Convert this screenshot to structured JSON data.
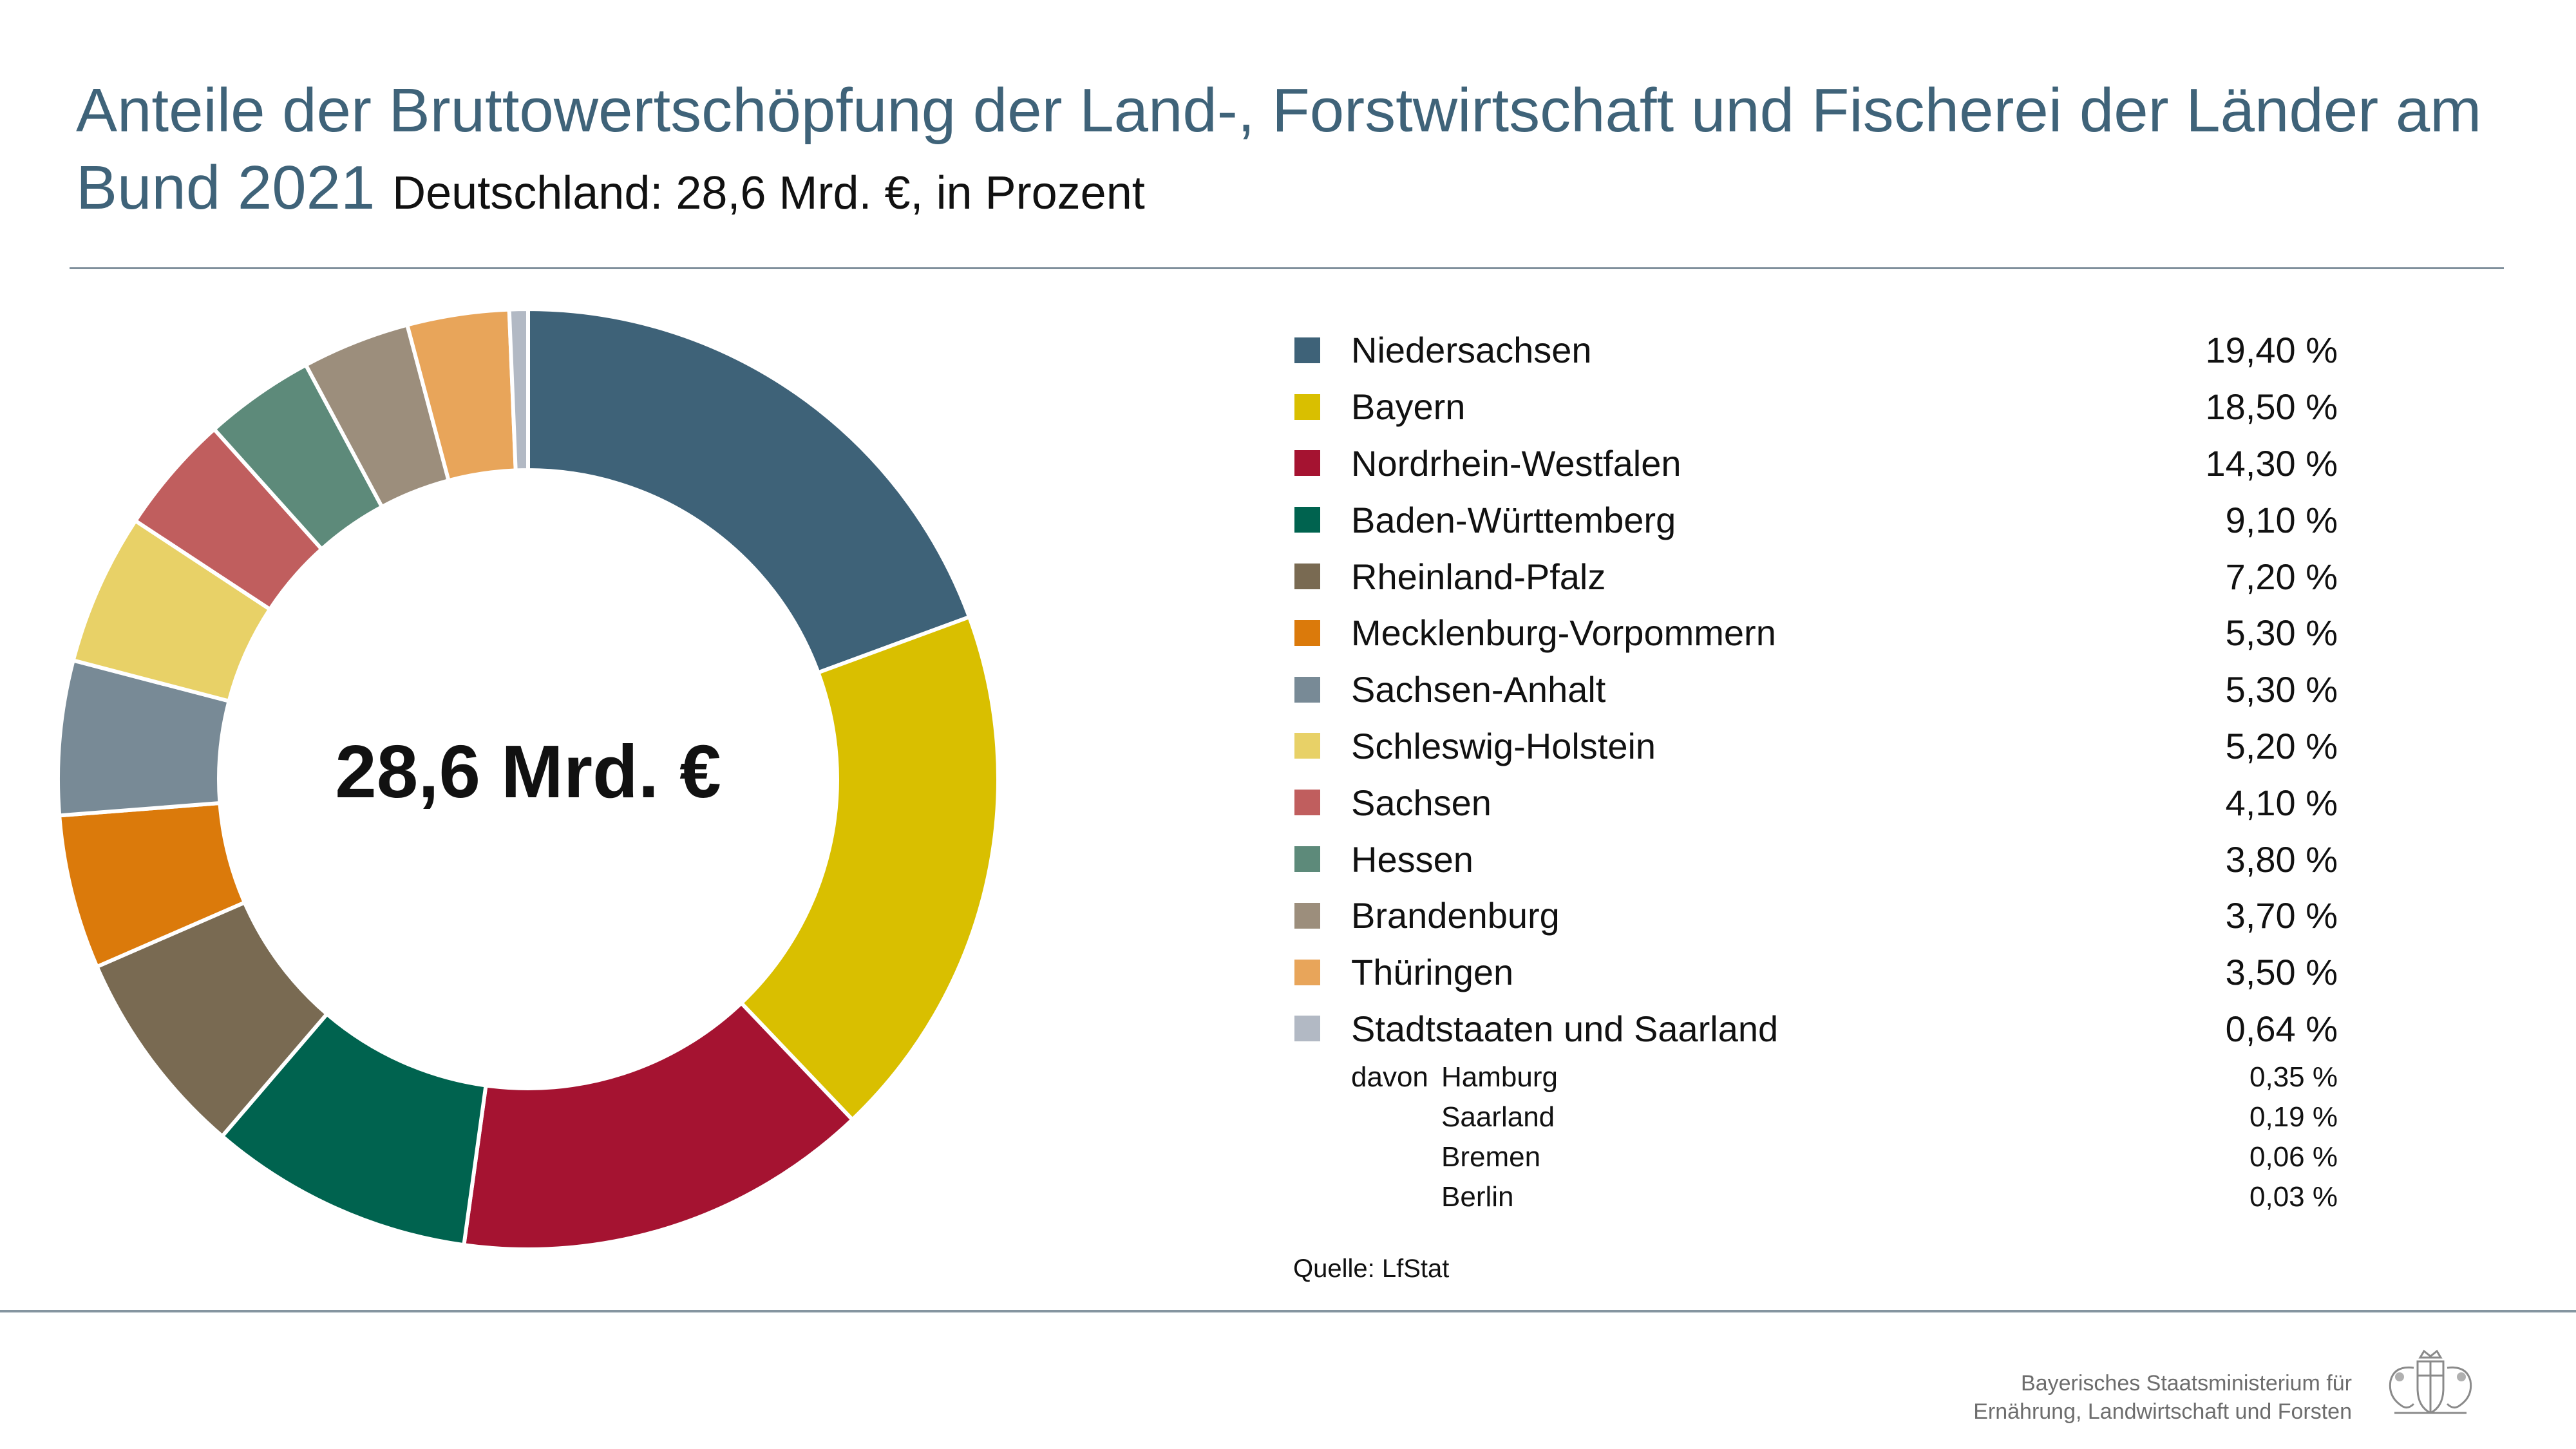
{
  "title": "Anteile der Bruttowertschöpfung der Land-, Forstwirtschaft und Fischerei der Länder am Bund 2021",
  "subtitle": "Deutschland: 28,6 Mrd. €, in Prozent",
  "center_label": "28,6 Mrd. €",
  "chart_data": {
    "type": "pie",
    "donut": true,
    "total_label": "28,6 Mrd. €",
    "unit": "%",
    "categories": [
      "Niedersachsen",
      "Bayern",
      "Nordrhein-Westfalen",
      "Baden-Württemberg",
      "Rheinland-Pfalz",
      "Mecklenburg-Vorpommern",
      "Sachsen-Anhalt",
      "Schleswig-Holstein",
      "Sachsen",
      "Hessen",
      "Brandenburg",
      "Thüringen",
      "Stadtstaaten und Saarland"
    ],
    "values": [
      19.4,
      18.5,
      14.3,
      9.1,
      7.2,
      5.3,
      5.3,
      5.2,
      4.1,
      3.8,
      3.7,
      3.5,
      0.64
    ],
    "value_labels": [
      "19,40 %",
      "18,50 %",
      "14,30 %",
      "9,10 %",
      "7,20 %",
      "5,30 %",
      "5,30 %",
      "5,20 %",
      "4,10 %",
      "3,80 %",
      "3,70 %",
      "3,50 %",
      "0,64 %"
    ],
    "colors": [
      "#3e6278",
      "#d9bf00",
      "#a51331",
      "#00634f",
      "#796a52",
      "#db7a0b",
      "#788a96",
      "#e8d167",
      "#c05e5e",
      "#5d8a7a",
      "#9c8e7c",
      "#e8a55a",
      "#b2b9c4"
    ],
    "legend_position": "right",
    "breakdown": {
      "prefix": "davon",
      "items": [
        {
          "name": "Hamburg",
          "label": "0,35 %",
          "value": 0.35
        },
        {
          "name": "Saarland",
          "label": "0,19 %",
          "value": 0.19
        },
        {
          "name": "Bremen",
          "label": "0,06 %",
          "value": 0.06
        },
        {
          "name": "Berlin",
          "label": "0,03 %",
          "value": 0.03
        }
      ]
    }
  },
  "source": "Quelle: LfStat",
  "ministry_line1": "Bayerisches Staatsministerium für",
  "ministry_line2": "Ernährung, Landwirtschaft und Forsten",
  "crest_icon": "bavarian-coat-of-arms-icon"
}
